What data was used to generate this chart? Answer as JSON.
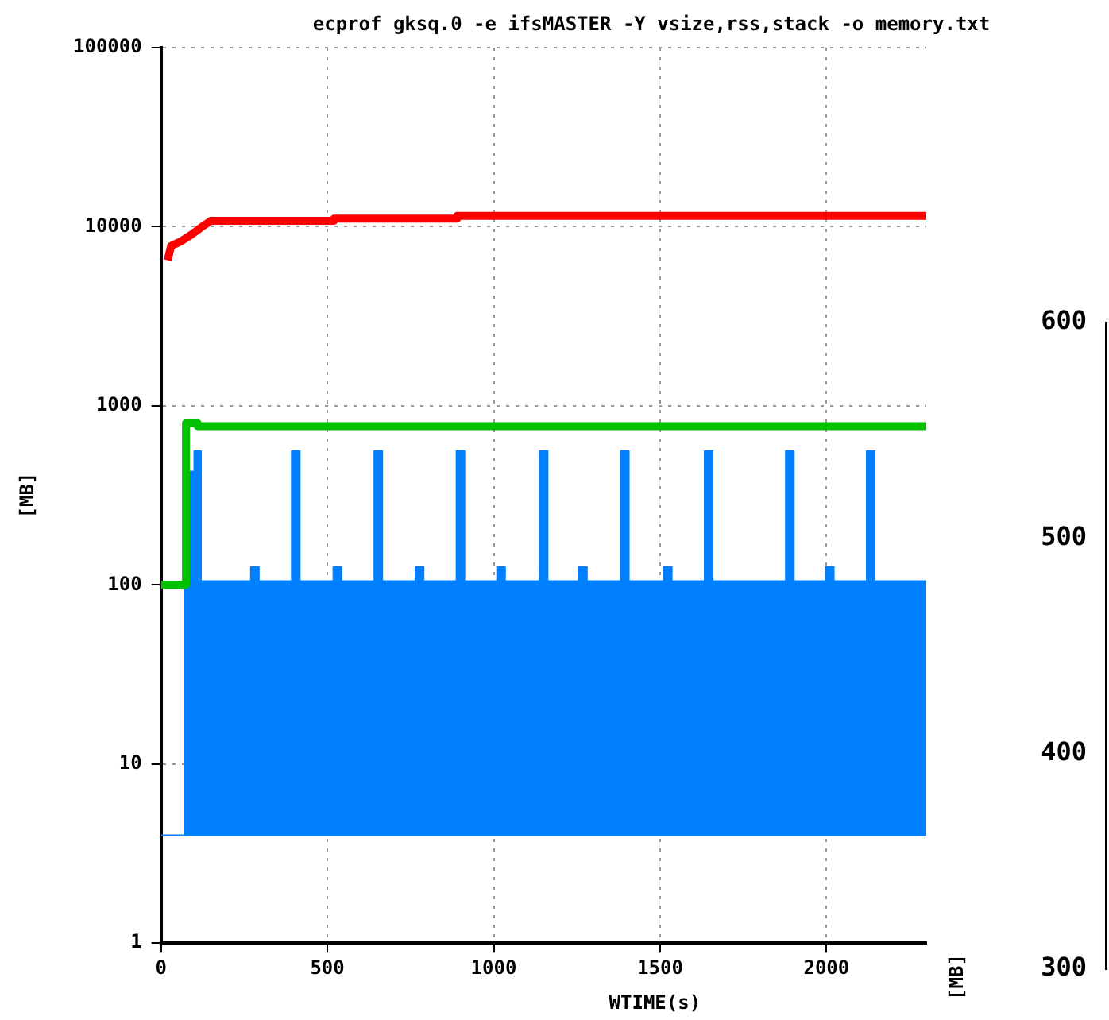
{
  "chart_data": {
    "type": "line",
    "title": "ecprof gksq.0 -e ifsMASTER -Y vsize,rss,stack -o memory.txt",
    "xlabel": "WTIME(s)",
    "ylabel": "[MB]",
    "log": "y",
    "grid": true,
    "legend": false,
    "marker": "none",
    "line_style": "solid",
    "xlim": [
      0,
      2300
    ],
    "xticks": [
      0,
      500,
      1000,
      1500,
      2000
    ],
    "ylim": [
      1,
      100000
    ],
    "yticks": [
      1,
      10,
      100,
      1000,
      10000,
      100000
    ],
    "y2label": "[MB]",
    "y2lim": [
      300,
      600
    ],
    "y2ticks": [
      300,
      400,
      500,
      600
    ],
    "series": [
      {
        "color": "#ff0000",
        "x": [
          20,
          30,
          60,
          90,
          120,
          150,
          520,
          520,
          890,
          890,
          2300
        ],
        "values": [
          6500,
          7800,
          8300,
          9000,
          9900,
          10800,
          10800,
          11100,
          11100,
          11500,
          11500
        ]
      },
      {
        "color": "#00c000",
        "x": [
          0,
          75,
          75,
          110,
          110,
          2300
        ],
        "values": [
          100,
          100,
          800,
          800,
          770,
          770
        ]
      },
      {
        "type": "area",
        "color": "#0080ff",
        "x": [
          0,
          70,
          70,
          80,
          80,
          100,
          100,
          120,
          120,
          270,
          270,
          294,
          294,
          393,
          393,
          417,
          417,
          518,
          518,
          542,
          542,
          641,
          641,
          665,
          665,
          765,
          765,
          789,
          789,
          888,
          888,
          912,
          912,
          1010,
          1010,
          1034,
          1034,
          1138,
          1138,
          1162,
          1162,
          1256,
          1256,
          1280,
          1280,
          1382,
          1382,
          1406,
          1406,
          1511,
          1511,
          1535,
          1535,
          1634,
          1634,
          1658,
          1658,
          1878,
          1878,
          1902,
          1902,
          1998,
          1998,
          2022,
          2022,
          2121,
          2121,
          2145,
          2145,
          2300,
          2300,
          70
        ],
        "values": [
          4,
          4,
          380,
          380,
          430,
          430,
          560,
          560,
          105,
          105,
          126,
          126,
          105,
          105,
          560,
          560,
          105,
          105,
          126,
          126,
          105,
          105,
          560,
          560,
          105,
          105,
          126,
          126,
          105,
          105,
          560,
          560,
          105,
          105,
          126,
          126,
          105,
          105,
          560,
          560,
          105,
          105,
          126,
          126,
          105,
          105,
          560,
          560,
          105,
          105,
          126,
          126,
          105,
          105,
          560,
          560,
          105,
          105,
          560,
          560,
          105,
          105,
          126,
          126,
          105,
          105,
          560,
          560,
          105,
          105,
          4,
          4
        ]
      }
    ]
  }
}
